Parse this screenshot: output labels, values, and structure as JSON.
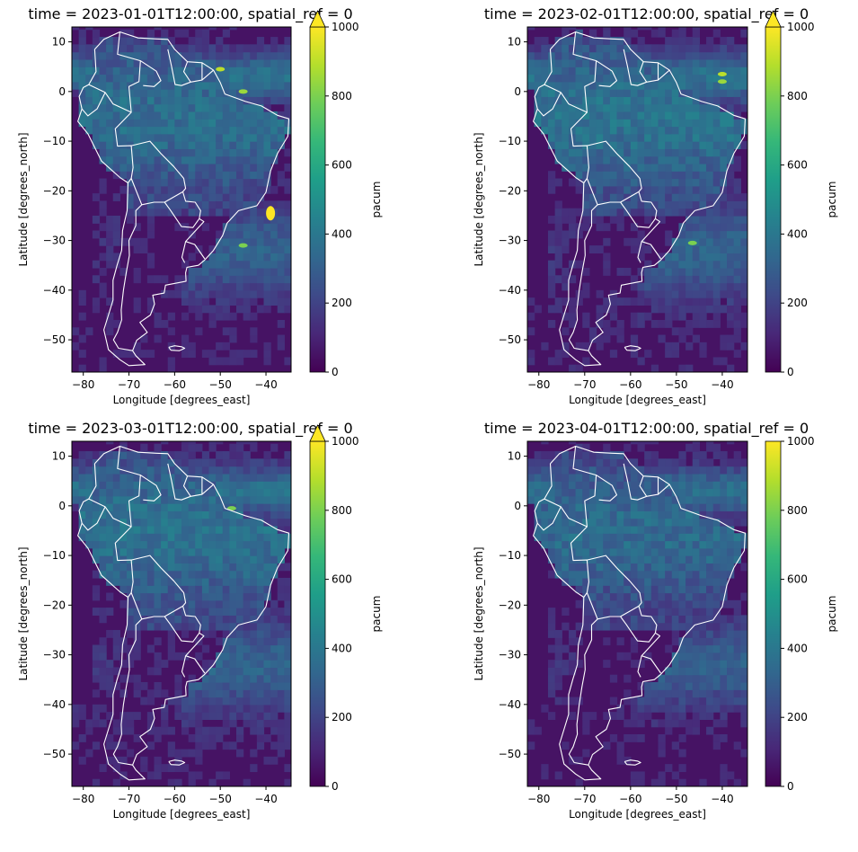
{
  "chart_data": [
    {
      "type": "heatmap",
      "title": "time = 2023-01-01T12:00:00, spatial_ref = 0",
      "xlabel": "Longitude [degrees_east]",
      "ylabel": "Latitude [degrees_north]",
      "xlim": [
        -82.5,
        -34.5
      ],
      "ylim": [
        -56.5,
        13
      ],
      "xticks": [
        -80,
        -70,
        -60,
        -50,
        -40
      ],
      "yticks": [
        10,
        0,
        -10,
        -20,
        -30,
        -40,
        -50
      ],
      "colorbar": {
        "label": "pacum",
        "range": [
          0,
          1000
        ],
        "ticks": [
          0,
          200,
          400,
          600,
          800,
          1000
        ],
        "extend_max": true,
        "colormap": "viridis"
      },
      "hotspots": [
        {
          "lon": -39,
          "lat": -24.5,
          "value": 1000
        },
        {
          "lon": -50,
          "lat": 4.5,
          "value": 900
        },
        {
          "lon": -45,
          "lat": 0,
          "value": 850
        },
        {
          "lon": -45,
          "lat": -31,
          "value": 800
        }
      ],
      "background_level": 120
    },
    {
      "type": "heatmap",
      "title": "time = 2023-02-01T12:00:00, spatial_ref = 0",
      "xlabel": "Longitude [degrees_east]",
      "ylabel": "Latitude [degrees_north]",
      "xlim": [
        -82.5,
        -34.5
      ],
      "ylim": [
        -56.5,
        13
      ],
      "xticks": [
        -80,
        -70,
        -60,
        -50,
        -40
      ],
      "yticks": [
        10,
        0,
        -10,
        -20,
        -30,
        -40,
        -50
      ],
      "colorbar": {
        "label": "pacum",
        "range": [
          0,
          1000
        ],
        "ticks": [
          0,
          200,
          400,
          600,
          800,
          1000
        ],
        "extend_max": true,
        "colormap": "viridis"
      },
      "hotspots": [
        {
          "lon": -40,
          "lat": 3.5,
          "value": 900
        },
        {
          "lon": -40,
          "lat": 2.0,
          "value": 850
        },
        {
          "lon": -46.5,
          "lat": -30.5,
          "value": 800
        }
      ],
      "background_level": 150
    },
    {
      "type": "heatmap",
      "title": "time = 2023-03-01T12:00:00, spatial_ref = 0",
      "xlabel": "Longitude [degrees_east]",
      "ylabel": "Latitude [degrees_north]",
      "xlim": [
        -82.5,
        -34.5
      ],
      "ylim": [
        -56.5,
        13
      ],
      "xticks": [
        -80,
        -70,
        -60,
        -50,
        -40
      ],
      "yticks": [
        10,
        0,
        -10,
        -20,
        -30,
        -40,
        -50
      ],
      "colorbar": {
        "label": "pacum",
        "range": [
          0,
          1000
        ],
        "ticks": [
          0,
          200,
          400,
          600,
          800,
          1000
        ],
        "extend_max": true,
        "colormap": "viridis"
      },
      "hotspots": [
        {
          "lon": -47.5,
          "lat": -0.5,
          "value": 800
        }
      ],
      "background_level": 140
    },
    {
      "type": "heatmap",
      "title": "time = 2023-04-01T12:00:00, spatial_ref = 0",
      "xlabel": "Longitude [degrees_east]",
      "ylabel": "Latitude [degrees_north]",
      "xlim": [
        -82.5,
        -34.5
      ],
      "ylim": [
        -56.5,
        13
      ],
      "xticks": [
        -80,
        -70,
        -60,
        -50,
        -40
      ],
      "yticks": [
        10,
        0,
        -10,
        -20,
        -30,
        -40,
        -50
      ],
      "colorbar": {
        "label": "pacum",
        "range": [
          0,
          1000
        ],
        "ticks": [
          0,
          200,
          400,
          600,
          800,
          1000
        ],
        "extend_max": false,
        "colormap": "viridis"
      },
      "hotspots": [],
      "background_level": 100
    }
  ]
}
